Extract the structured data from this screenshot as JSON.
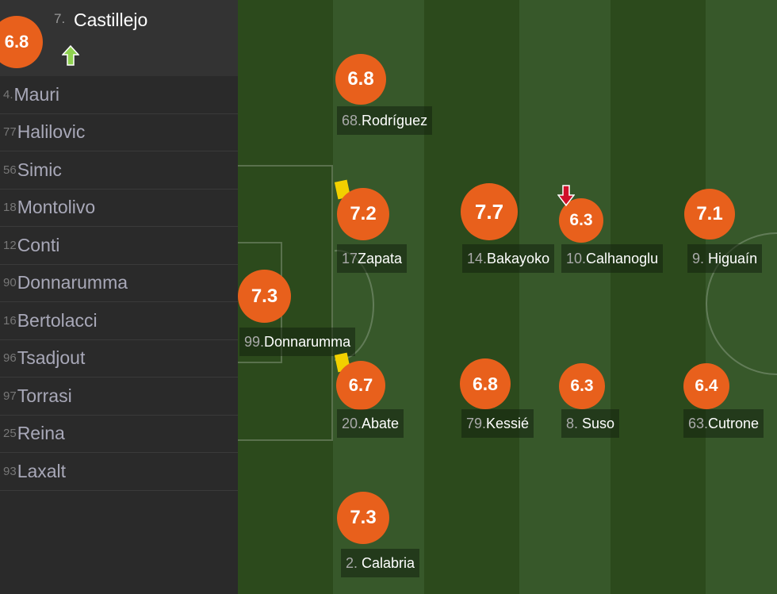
{
  "substitute_in": {
    "rating": "6.8",
    "number": "7.",
    "name": "Castillejo",
    "icon": "arrow-up-icon",
    "icon_color": "#8fd14f"
  },
  "bench": [
    {
      "number": "4.",
      "name": "Mauri"
    },
    {
      "number": "77",
      "name": "Halilovic"
    },
    {
      "number": "56",
      "name": "Simic"
    },
    {
      "number": "18",
      "name": "Montolivo"
    },
    {
      "number": "12",
      "name": "Conti"
    },
    {
      "number": "90",
      "name": "Donnarumma"
    },
    {
      "number": "16",
      "name": "Bertolacci"
    },
    {
      "number": "96",
      "name": "Tsadjout"
    },
    {
      "number": "97",
      "name": "Torrasi"
    },
    {
      "number": "25",
      "name": "Reina"
    },
    {
      "number": "93",
      "name": "Laxalt"
    }
  ],
  "players": [
    {
      "number": "68.",
      "name": "Rodríguez",
      "rating": "6.8"
    },
    {
      "number": "17",
      "name": "Zapata",
      "rating": "7.2",
      "card": "yellow"
    },
    {
      "number": "14.",
      "name": "Bakayoko",
      "rating": "7.7"
    },
    {
      "number": "10.",
      "name": "Calhanoglu",
      "rating": "6.3",
      "subbed_off": true
    },
    {
      "number": "9.",
      "name": "Higuaín",
      "rating": "7.1"
    },
    {
      "number": "99.",
      "name": "Donnarumma",
      "rating": "7.3"
    },
    {
      "number": "20.",
      "name": "Abate",
      "rating": "6.7",
      "card": "yellow"
    },
    {
      "number": "79.",
      "name": "Kessié",
      "rating": "6.8"
    },
    {
      "number": "8.",
      "name": "Suso",
      "rating": "6.3"
    },
    {
      "number": "63.",
      "name": "Cutrone",
      "rating": "6.4"
    },
    {
      "number": "2.",
      "name": "Calabria",
      "rating": "7.3"
    }
  ],
  "colors": {
    "rating_badge": "#e8601c",
    "yellow_card": "#f2d000",
    "sub_off": "#d0102a"
  }
}
